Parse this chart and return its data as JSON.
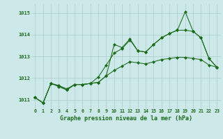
{
  "title": "Graphe pression niveau de la mer (hPa)",
  "background_color": "#cce8e8",
  "grid_color": "#aacccc",
  "line_color": "#1a6b1a",
  "ylim": [
    1010.6,
    1015.4
  ],
  "yticks": [
    1011,
    1012,
    1013,
    1014,
    1015
  ],
  "x_ticks": [
    0,
    1,
    2,
    3,
    4,
    5,
    6,
    7,
    8,
    9,
    10,
    11,
    12,
    13,
    14,
    15,
    16,
    17,
    18,
    19,
    20,
    21,
    22,
    23
  ],
  "series1": [
    1011.1,
    1010.85,
    1011.75,
    1011.65,
    1011.5,
    1011.7,
    1011.7,
    1011.75,
    1011.8,
    1012.1,
    1013.55,
    1013.4,
    1013.8,
    1013.25,
    1013.2,
    1013.55,
    1013.85,
    1014.05,
    1014.2,
    1015.05,
    1014.15,
    1013.85,
    1012.9,
    1012.5
  ],
  "series2": [
    1011.1,
    1010.85,
    1011.75,
    1011.6,
    1011.45,
    1011.7,
    1011.7,
    1011.75,
    1012.05,
    1012.6,
    1013.15,
    1013.35,
    1013.75,
    1013.25,
    1013.2,
    1013.55,
    1013.85,
    1014.05,
    1014.2,
    1014.2,
    1014.15,
    1013.85,
    1012.9,
    1012.5
  ],
  "series3": [
    1011.1,
    1010.85,
    1011.75,
    1011.65,
    1011.45,
    1011.7,
    1011.7,
    1011.75,
    1011.8,
    1012.1,
    1012.35,
    1012.55,
    1012.75,
    1012.7,
    1012.65,
    1012.75,
    1012.85,
    1012.9,
    1012.95,
    1012.95,
    1012.9,
    1012.85,
    1012.6,
    1012.5
  ]
}
